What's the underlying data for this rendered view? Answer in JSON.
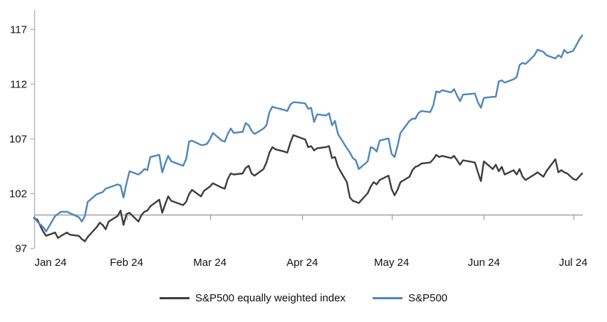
{
  "chart_data": {
    "type": "line",
    "title": "",
    "xlabel": "",
    "ylabel": "",
    "x_axis": {
      "tick_labels": [
        "Jan 24",
        "Feb 24",
        "Mar 24",
        "Apr 24",
        "May 24",
        "Jun 24",
        "Jul 24"
      ],
      "tick_days": [
        0,
        31,
        59,
        90,
        120,
        151,
        181
      ],
      "label_center_x": [
        71,
        177.6,
        294.6,
        424.2,
        549.6,
        679.2,
        804.6
      ]
    },
    "y_axis": {
      "ticks": [
        97,
        102,
        107,
        112,
        117
      ],
      "min": 97,
      "max": 117,
      "baseline_value": 100
    },
    "grid": "baseline-only",
    "legend_position": "bottom-center",
    "series": [
      {
        "name": "S&P500 equally weighted index",
        "color": "#3d3d3d",
        "points": [
          [
            0,
            99.7
          ],
          [
            1,
            99.6
          ],
          [
            3,
            98.5
          ],
          [
            4,
            98.1
          ],
          [
            7,
            98.4
          ],
          [
            8,
            97.9
          ],
          [
            9,
            98.1
          ],
          [
            11,
            98.4
          ],
          [
            12,
            98.2
          ],
          [
            15,
            98.1
          ],
          [
            16,
            97.8
          ],
          [
            17,
            97.6
          ],
          [
            18,
            98.0
          ],
          [
            21,
            98.9
          ],
          [
            22,
            99.3
          ],
          [
            23,
            99.1
          ],
          [
            24,
            98.7
          ],
          [
            25,
            99.4
          ],
          [
            28,
            99.9
          ],
          [
            29,
            100.4
          ],
          [
            30,
            99.1
          ],
          [
            31,
            100.1
          ],
          [
            32,
            100.2
          ],
          [
            35,
            99.4
          ],
          [
            36,
            100.0
          ],
          [
            37,
            100.3
          ],
          [
            38,
            100.4
          ],
          [
            39,
            100.8
          ],
          [
            42,
            101.4
          ],
          [
            43,
            100.2
          ],
          [
            44,
            101.0
          ],
          [
            45,
            101.7
          ],
          [
            46,
            101.3
          ],
          [
            50,
            100.9
          ],
          [
            51,
            101.2
          ],
          [
            52,
            101.9
          ],
          [
            53,
            102.3
          ],
          [
            56,
            101.7
          ],
          [
            57,
            102.2
          ],
          [
            58,
            102.4
          ],
          [
            59,
            102.6
          ],
          [
            60,
            102.9
          ],
          [
            63,
            102.5
          ],
          [
            64,
            102.4
          ],
          [
            65,
            103.3
          ],
          [
            66,
            103.8
          ],
          [
            67,
            103.7
          ],
          [
            70,
            103.8
          ],
          [
            71,
            104.3
          ],
          [
            72,
            104.5
          ],
          [
            73,
            103.8
          ],
          [
            74,
            103.6
          ],
          [
            77,
            104.2
          ],
          [
            78,
            104.8
          ],
          [
            79,
            105.7
          ],
          [
            80,
            106.2
          ],
          [
            81,
            106.0
          ],
          [
            84,
            105.8
          ],
          [
            85,
            105.7
          ],
          [
            86,
            106.6
          ],
          [
            87,
            107.3
          ],
          [
            88,
            107.2
          ],
          [
            91,
            106.9
          ],
          [
            92,
            106.2
          ],
          [
            93,
            106.3
          ],
          [
            94,
            105.9
          ],
          [
            95,
            106.1
          ],
          [
            98,
            106.2
          ],
          [
            99,
            106.3
          ],
          [
            100,
            105.2
          ],
          [
            101,
            105.3
          ],
          [
            102,
            104.4
          ],
          [
            105,
            103.0
          ],
          [
            106,
            101.6
          ],
          [
            107,
            101.3
          ],
          [
            108,
            101.2
          ],
          [
            109,
            101.1
          ],
          [
            112,
            102.0
          ],
          [
            113,
            102.6
          ],
          [
            114,
            103.0
          ],
          [
            115,
            102.8
          ],
          [
            116,
            103.2
          ],
          [
            119,
            103.6
          ],
          [
            120,
            102.4
          ],
          [
            121,
            101.8
          ],
          [
            122,
            102.3
          ],
          [
            123,
            103.0
          ],
          [
            126,
            103.5
          ],
          [
            127,
            104.1
          ],
          [
            128,
            104.4
          ],
          [
            129,
            104.5
          ],
          [
            130,
            104.7
          ],
          [
            133,
            104.8
          ],
          [
            134,
            105.1
          ],
          [
            135,
            105.5
          ],
          [
            136,
            105.3
          ],
          [
            137,
            105.4
          ],
          [
            140,
            105.2
          ],
          [
            141,
            105.4
          ],
          [
            142,
            105.0
          ],
          [
            143,
            104.6
          ],
          [
            144,
            105.0
          ],
          [
            148,
            104.8
          ],
          [
            149,
            103.9
          ],
          [
            150,
            103.1
          ],
          [
            151,
            104.9
          ],
          [
            154,
            104.2
          ],
          [
            155,
            104.6
          ],
          [
            156,
            104.0
          ],
          [
            157,
            104.4
          ],
          [
            158,
            103.7
          ],
          [
            161,
            104.1
          ],
          [
            162,
            103.7
          ],
          [
            163,
            104.2
          ],
          [
            164,
            103.5
          ],
          [
            165,
            103.2
          ],
          [
            168,
            103.7
          ],
          [
            169,
            103.9
          ],
          [
            171,
            103.5
          ],
          [
            172,
            104.0
          ],
          [
            175,
            105.1
          ],
          [
            176,
            103.9
          ],
          [
            177,
            104.1
          ],
          [
            178,
            103.9
          ],
          [
            179,
            103.8
          ],
          [
            181,
            103.3
          ],
          [
            182,
            103.2
          ],
          [
            183,
            103.5
          ],
          [
            184,
            103.8
          ]
        ]
      },
      {
        "name": "S&P500",
        "color": "#4e86bd",
        "points": [
          [
            0,
            99.8
          ],
          [
            1,
            99.4
          ],
          [
            3,
            98.9
          ],
          [
            4,
            98.5
          ],
          [
            7,
            99.9
          ],
          [
            9,
            100.3
          ],
          [
            11,
            100.3
          ],
          [
            15,
            99.8
          ],
          [
            16,
            99.4
          ],
          [
            17,
            99.9
          ],
          [
            18,
            101.2
          ],
          [
            21,
            101.9
          ],
          [
            23,
            102.1
          ],
          [
            24,
            102.4
          ],
          [
            25,
            102.5
          ],
          [
            28,
            102.8
          ],
          [
            29,
            102.7
          ],
          [
            30,
            101.6
          ],
          [
            31,
            102.9
          ],
          [
            32,
            104.0
          ],
          [
            35,
            103.7
          ],
          [
            36,
            103.9
          ],
          [
            37,
            104.2
          ],
          [
            38,
            104.1
          ],
          [
            39,
            105.3
          ],
          [
            42,
            105.5
          ],
          [
            43,
            103.9
          ],
          [
            44,
            104.7
          ],
          [
            45,
            105.4
          ],
          [
            46,
            104.9
          ],
          [
            50,
            104.5
          ],
          [
            51,
            105.1
          ],
          [
            52,
            106.7
          ],
          [
            53,
            106.8
          ],
          [
            56,
            106.4
          ],
          [
            57,
            106.4
          ],
          [
            58,
            106.5
          ],
          [
            59,
            106.9
          ],
          [
            60,
            107.5
          ],
          [
            63,
            106.8
          ],
          [
            64,
            106.7
          ],
          [
            65,
            107.4
          ],
          [
            66,
            107.9
          ],
          [
            67,
            107.5
          ],
          [
            70,
            107.6
          ],
          [
            71,
            108.4
          ],
          [
            72,
            108.2
          ],
          [
            73,
            107.7
          ],
          [
            74,
            107.4
          ],
          [
            77,
            107.9
          ],
          [
            78,
            108.2
          ],
          [
            79,
            109.4
          ],
          [
            80,
            109.9
          ],
          [
            81,
            109.8
          ],
          [
            84,
            109.6
          ],
          [
            85,
            109.5
          ],
          [
            86,
            110.1
          ],
          [
            87,
            110.3
          ],
          [
            88,
            110.3
          ],
          [
            91,
            110.2
          ],
          [
            92,
            109.7
          ],
          [
            93,
            109.8
          ],
          [
            94,
            108.5
          ],
          [
            95,
            109.2
          ],
          [
            98,
            109.1
          ],
          [
            99,
            109.3
          ],
          [
            100,
            108.2
          ],
          [
            101,
            108.6
          ],
          [
            102,
            107.4
          ],
          [
            105,
            106.1
          ],
          [
            106,
            105.7
          ],
          [
            107,
            105.2
          ],
          [
            108,
            105.0
          ],
          [
            109,
            104.2
          ],
          [
            112,
            104.9
          ],
          [
            113,
            106.2
          ],
          [
            114,
            106.1
          ],
          [
            115,
            105.8
          ],
          [
            116,
            106.8
          ],
          [
            119,
            107.0
          ],
          [
            120,
            105.6
          ],
          [
            121,
            105.3
          ],
          [
            122,
            106.3
          ],
          [
            123,
            107.5
          ],
          [
            126,
            108.6
          ],
          [
            127,
            108.8
          ],
          [
            128,
            108.8
          ],
          [
            129,
            109.3
          ],
          [
            130,
            109.5
          ],
          [
            133,
            109.4
          ],
          [
            134,
            110.0
          ],
          [
            135,
            111.3
          ],
          [
            136,
            111.2
          ],
          [
            137,
            111.4
          ],
          [
            140,
            111.2
          ],
          [
            141,
            111.5
          ],
          [
            142,
            110.9
          ],
          [
            143,
            110.4
          ],
          [
            144,
            111.0
          ],
          [
            148,
            111.1
          ],
          [
            149,
            110.3
          ],
          [
            150,
            109.8
          ],
          [
            151,
            110.7
          ],
          [
            154,
            110.8
          ],
          [
            155,
            110.8
          ],
          [
            156,
            112.2
          ],
          [
            157,
            112.3
          ],
          [
            158,
            112.1
          ],
          [
            161,
            112.4
          ],
          [
            162,
            112.6
          ],
          [
            163,
            113.7
          ],
          [
            164,
            113.9
          ],
          [
            165,
            113.8
          ],
          [
            168,
            114.6
          ],
          [
            169,
            115.1
          ],
          [
            171,
            114.9
          ],
          [
            172,
            114.6
          ],
          [
            175,
            114.3
          ],
          [
            176,
            114.6
          ],
          [
            177,
            114.4
          ],
          [
            178,
            115.1
          ],
          [
            179,
            114.8
          ],
          [
            181,
            115.0
          ],
          [
            182,
            115.5
          ],
          [
            183,
            116.0
          ],
          [
            184,
            116.4
          ]
        ]
      }
    ]
  },
  "legend": {
    "items": [
      {
        "label": "S&P500 equally weighted index",
        "color": "#3d3d3d"
      },
      {
        "label": "S&P500",
        "color": "#4e86bd"
      }
    ]
  },
  "colors": {
    "axis_line": "#b0b0b0",
    "baseline": "#a3a3a3",
    "text": "#111111"
  }
}
